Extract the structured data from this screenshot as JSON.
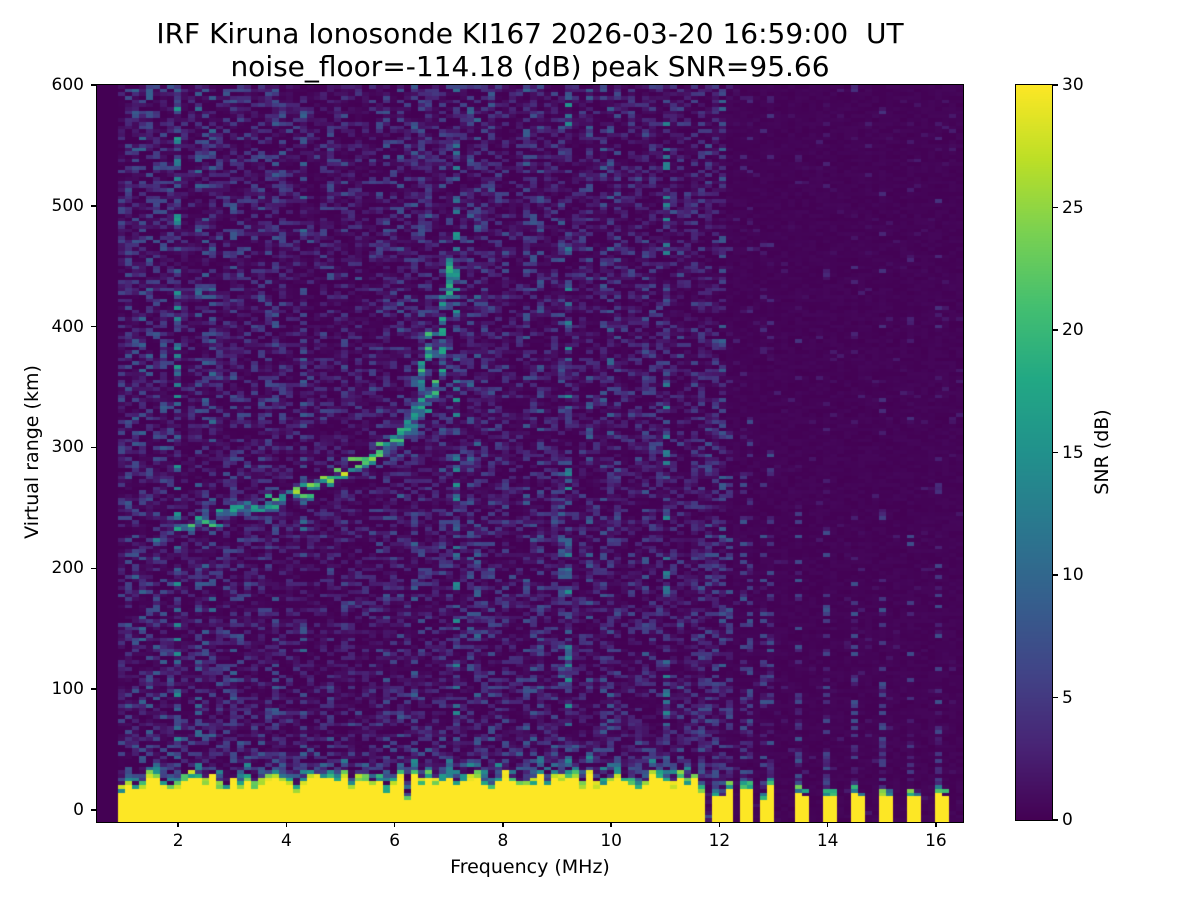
{
  "chart_data": {
    "type": "heatmap",
    "title": "IRF Kiruna Ionosonde KI167 2026-03-20 16:59:00  UT",
    "subtitle": "noise_floor=-114.18 (dB) peak SNR=95.66",
    "station": "IRF Kiruna Ionosonde KI167",
    "timestamp_ut": "2026-03-20 16:59:00",
    "noise_floor_db": -114.18,
    "peak_snr_db": 95.66,
    "xlabel": "Frequency (MHz)",
    "ylabel": "Virtual range (km)",
    "xlim": [
      0.5,
      16.5
    ],
    "ylim": [
      -10,
      600
    ],
    "x_ticks": [
      2,
      4,
      6,
      8,
      10,
      12,
      14,
      16
    ],
    "y_ticks": [
      0,
      100,
      200,
      300,
      400,
      500,
      600
    ],
    "grid": false,
    "colorbar": {
      "label": "SNR (dB)",
      "vmin": 0,
      "vmax": 30,
      "ticks": [
        0,
        5,
        10,
        15,
        20,
        25,
        30
      ],
      "position": "right"
    },
    "colormap_viridis_stops": [
      "#440154",
      "#482475",
      "#414487",
      "#355f8d",
      "#2a788e",
      "#21918c",
      "#22a884",
      "#44bf70",
      "#7ad151",
      "#bddf26",
      "#fde725"
    ],
    "features": {
      "seed": 7,
      "grid_cols": 124,
      "grid_rows": 200,
      "sounding_band": {
        "f_start": 0.95,
        "f_end": 12.05
      },
      "ground_clutter": {
        "f_start": 0.95,
        "f_end": 11.57,
        "top_km_min": 20,
        "top_km_max": 34
      },
      "echo_trace_o": [
        [
          1.65,
          227
        ],
        [
          2.0,
          230
        ],
        [
          2.6,
          237
        ],
        [
          3.2,
          246
        ],
        [
          3.8,
          255
        ],
        [
          4.4,
          265
        ],
        [
          5.0,
          277
        ],
        [
          5.5,
          289
        ],
        [
          5.9,
          301
        ],
        [
          6.2,
          314
        ],
        [
          6.4,
          329
        ],
        [
          6.5,
          347
        ],
        [
          6.56,
          371
        ],
        [
          6.59,
          393
        ]
      ],
      "echo_trace_x": [
        [
          2.3,
          236
        ],
        [
          3.0,
          246
        ],
        [
          3.6,
          255
        ],
        [
          4.2,
          264
        ],
        [
          4.8,
          276
        ],
        [
          5.4,
          290
        ],
        [
          5.9,
          303
        ],
        [
          6.3,
          317
        ],
        [
          6.55,
          331
        ],
        [
          6.75,
          347
        ],
        [
          6.87,
          367
        ],
        [
          6.93,
          399
        ],
        [
          6.955,
          431
        ],
        [
          6.97,
          456
        ]
      ],
      "interference_combs_mhz": [
        11.7,
        11.98,
        12.22,
        12.41,
        12.61,
        12.81,
        13.0,
        13.46,
        13.98,
        14.48,
        14.98,
        15.52,
        16.02
      ],
      "faint_streaks": [
        {
          "f": 3.88,
          "km_min": 415,
          "km_max": 585
        },
        {
          "f": 6.62,
          "km_min": 400,
          "km_max": 555
        },
        {
          "f": 7.72,
          "km_min": 340,
          "km_max": 445
        },
        {
          "f": 8.95,
          "km_min": 170,
          "km_max": 265
        }
      ]
    }
  }
}
